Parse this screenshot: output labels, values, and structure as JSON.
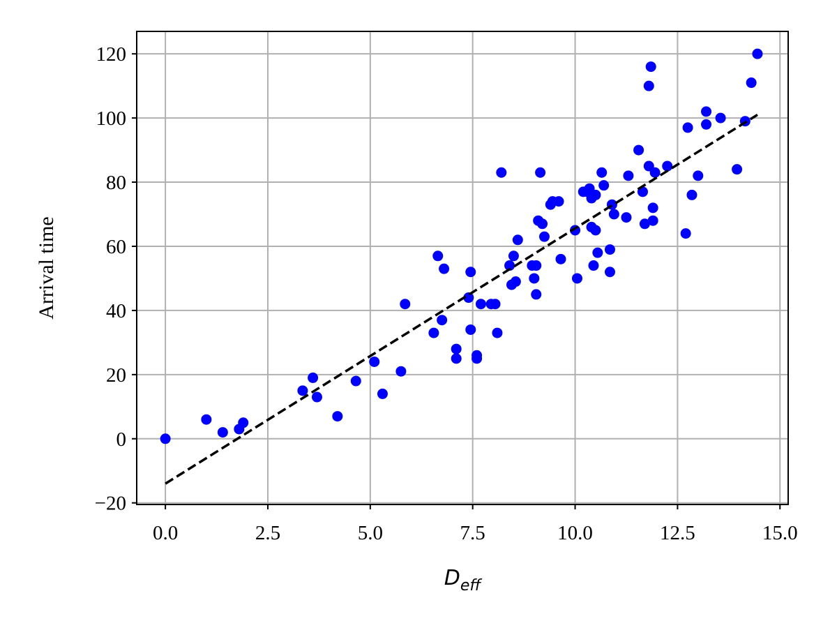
{
  "chart_data": {
    "type": "scatter",
    "title": "",
    "xlabel": {
      "base": "D",
      "sub": "eff"
    },
    "ylabel": "Arrival time",
    "xlim": [
      -0.7,
      15.2
    ],
    "ylim": [
      -20.5,
      127
    ],
    "xticks": [
      0.0,
      2.5,
      5.0,
      7.5,
      10.0,
      12.5,
      15.0
    ],
    "xtick_labels": [
      "0.0",
      "2.5",
      "5.0",
      "7.5",
      "10.0",
      "12.5",
      "15.0"
    ],
    "yticks": [
      -20,
      0,
      20,
      40,
      60,
      80,
      100,
      120
    ],
    "ytick_labels": [
      "−20",
      "0",
      "20",
      "40",
      "60",
      "80",
      "100",
      "120"
    ],
    "grid": true,
    "colors": {
      "points": "#0000ff",
      "fit_line": "#000000",
      "grid": "#b0b0b0"
    },
    "series": [
      {
        "points": [
          [
            0.0,
            0
          ],
          [
            1.0,
            6
          ],
          [
            1.4,
            2
          ],
          [
            1.8,
            3
          ],
          [
            1.9,
            5
          ],
          [
            3.35,
            15
          ],
          [
            3.6,
            19
          ],
          [
            3.7,
            13
          ],
          [
            4.2,
            7
          ],
          [
            4.65,
            18
          ],
          [
            5.1,
            24
          ],
          [
            5.3,
            14
          ],
          [
            5.75,
            21
          ],
          [
            5.85,
            42
          ],
          [
            6.55,
            33
          ],
          [
            6.65,
            57
          ],
          [
            6.75,
            37
          ],
          [
            6.8,
            53
          ],
          [
            7.1,
            25
          ],
          [
            7.1,
            28
          ],
          [
            7.4,
            44
          ],
          [
            7.45,
            34
          ],
          [
            7.45,
            52
          ],
          [
            7.6,
            26
          ],
          [
            7.6,
            25
          ],
          [
            7.7,
            42
          ],
          [
            7.95,
            42
          ],
          [
            8.05,
            42
          ],
          [
            8.1,
            33
          ],
          [
            8.2,
            83
          ],
          [
            8.4,
            54
          ],
          [
            8.45,
            48
          ],
          [
            8.5,
            57
          ],
          [
            8.55,
            49
          ],
          [
            8.6,
            62
          ],
          [
            8.95,
            54
          ],
          [
            9.0,
            50
          ],
          [
            9.05,
            45
          ],
          [
            9.05,
            54
          ],
          [
            9.1,
            68
          ],
          [
            9.15,
            83
          ],
          [
            9.2,
            67
          ],
          [
            9.25,
            63
          ],
          [
            9.4,
            73
          ],
          [
            9.45,
            74
          ],
          [
            9.6,
            74
          ],
          [
            9.65,
            56
          ],
          [
            10.0,
            65
          ],
          [
            10.05,
            50
          ],
          [
            10.2,
            77
          ],
          [
            10.3,
            77
          ],
          [
            10.35,
            78
          ],
          [
            10.4,
            75
          ],
          [
            10.4,
            66
          ],
          [
            10.45,
            54
          ],
          [
            10.5,
            76
          ],
          [
            10.5,
            65
          ],
          [
            10.55,
            58
          ],
          [
            10.65,
            83
          ],
          [
            10.7,
            79
          ],
          [
            10.85,
            52
          ],
          [
            10.85,
            59
          ],
          [
            10.9,
            73
          ],
          [
            10.95,
            70
          ],
          [
            11.25,
            69
          ],
          [
            11.3,
            82
          ],
          [
            11.55,
            90
          ],
          [
            11.65,
            77
          ],
          [
            11.7,
            67
          ],
          [
            11.8,
            85
          ],
          [
            11.8,
            110
          ],
          [
            11.85,
            116
          ],
          [
            11.9,
            72
          ],
          [
            11.9,
            68
          ],
          [
            11.95,
            83
          ],
          [
            12.25,
            85
          ],
          [
            12.7,
            64
          ],
          [
            12.75,
            97
          ],
          [
            12.85,
            76
          ],
          [
            13.0,
            82
          ],
          [
            13.2,
            98
          ],
          [
            13.2,
            102
          ],
          [
            13.55,
            100
          ],
          [
            13.95,
            84
          ],
          [
            14.15,
            99
          ],
          [
            14.3,
            111
          ],
          [
            14.45,
            120
          ]
        ]
      }
    ],
    "fit_line": {
      "style": "dashed",
      "x": [
        0.0,
        14.45
      ],
      "y": [
        -14,
        101
      ]
    }
  }
}
